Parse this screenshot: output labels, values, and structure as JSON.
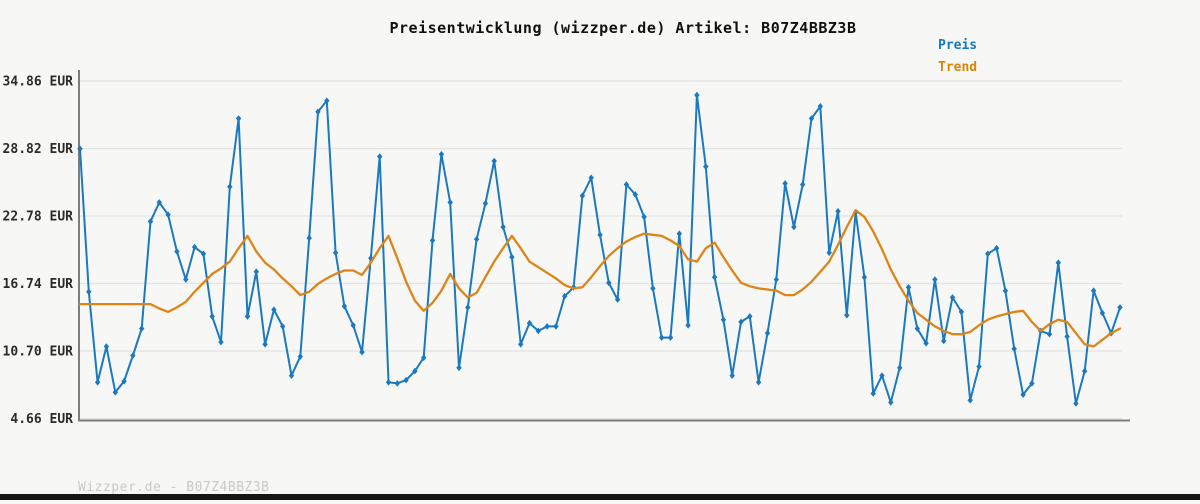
{
  "header": {
    "title": "Preisentwicklung (wizzper.de) Artikel: B07Z4BBZ3B"
  },
  "legend": {
    "items": [
      {
        "label": "Preis",
        "color": "#1878be"
      },
      {
        "label": "Trend",
        "color": "#dd8500"
      }
    ]
  },
  "footer": {
    "text": "Wizzper.de - B07Z4BBZ3B"
  },
  "colors": {
    "background": "#f7f7f6",
    "grid": "#e3e3e2",
    "axis": "#7d7d7d",
    "price_line": "#1b79c0",
    "trend_line": "#df8416",
    "bottom_bar": "#161616"
  },
  "chart_data": {
    "type": "line",
    "title": "Preisentwicklung (wizzper.de) Artikel: B07Z4BBZ3B",
    "currency": "EUR",
    "xlabel": "",
    "ylabel": "",
    "grid": "horizontal-only",
    "legend_position": "top-right",
    "x_tick_labels_visible": false,
    "y_axis": {
      "min": 4.44,
      "max": 35.84,
      "ticks": [
        {
          "value": 34.86,
          "label": "34.86 EUR"
        },
        {
          "value": 28.82,
          "label": "28.82 EUR"
        },
        {
          "value": 22.78,
          "label": "22.78 EUR"
        },
        {
          "value": 16.74,
          "label": "16.74 EUR"
        },
        {
          "value": 10.7,
          "label": "10.70 EUR"
        },
        {
          "value": 4.66,
          "label": "4.66 EUR"
        }
      ]
    },
    "series": [
      {
        "name": "Preis",
        "color": "#1b79c0",
        "marker": "diamond",
        "values": [
          28.8,
          16.0,
          7.9,
          11.1,
          7.0,
          8.0,
          10.3,
          12.7,
          22.3,
          24.0,
          22.9,
          19.6,
          17.1,
          20.0,
          19.4,
          13.8,
          11.5,
          25.4,
          31.5,
          13.8,
          17.8,
          11.3,
          14.4,
          12.9,
          8.5,
          10.2,
          20.8,
          32.1,
          33.1,
          19.5,
          14.7,
          13.0,
          10.6,
          19.0,
          28.1,
          7.9,
          7.8,
          8.1,
          8.9,
          10.1,
          20.6,
          28.3,
          24.0,
          9.2,
          14.6,
          20.7,
          23.9,
          27.7,
          21.8,
          19.1,
          11.3,
          13.2,
          12.5,
          12.9,
          12.9,
          15.6,
          16.4,
          24.6,
          26.2,
          21.1,
          16.8,
          15.3,
          25.6,
          24.7,
          22.7,
          16.3,
          11.9,
          11.9,
          21.2,
          13.0,
          33.6,
          27.2,
          17.3,
          13.5,
          8.5,
          13.3,
          13.8,
          7.9,
          12.3,
          17.1,
          25.7,
          21.8,
          25.6,
          31.5,
          32.6,
          19.5,
          23.2,
          13.9,
          23.1,
          17.3,
          6.9,
          8.5,
          6.1,
          9.2,
          16.4,
          12.7,
          11.4,
          17.1,
          11.6,
          15.5,
          14.2,
          6.3,
          9.3,
          19.4,
          19.9,
          16.1,
          10.9,
          6.8,
          7.8,
          12.5,
          12.2,
          18.6,
          12.0,
          6.0,
          8.9,
          16.1,
          14.1,
          12.3,
          14.6
        ]
      },
      {
        "name": "Trend",
        "color": "#df8416",
        "marker": "none",
        "values": [
          14.9,
          14.9,
          14.9,
          14.9,
          14.9,
          14.9,
          14.9,
          14.9,
          14.9,
          14.5,
          14.2,
          14.6,
          15.1,
          16.0,
          16.8,
          17.6,
          18.1,
          18.7,
          19.9,
          21.0,
          19.6,
          18.6,
          18.0,
          17.2,
          16.5,
          15.7,
          16.0,
          16.7,
          17.2,
          17.6,
          17.9,
          17.9,
          17.5,
          18.6,
          19.9,
          21.0,
          19.0,
          16.9,
          15.2,
          14.3,
          15.0,
          16.1,
          17.6,
          16.3,
          15.5,
          15.9,
          17.3,
          18.7,
          19.9,
          21.0,
          19.9,
          18.7,
          18.2,
          17.7,
          17.2,
          16.6,
          16.3,
          16.4,
          17.3,
          18.3,
          19.2,
          19.9,
          20.5,
          20.9,
          21.2,
          21.1,
          21.0,
          20.6,
          20.1,
          18.9,
          18.7,
          19.9,
          20.4,
          19.1,
          17.9,
          16.8,
          16.5,
          16.3,
          16.2,
          16.1,
          15.7,
          15.7,
          16.2,
          16.9,
          17.8,
          18.7,
          20.2,
          21.8,
          23.3,
          22.7,
          21.4,
          19.8,
          18.0,
          16.5,
          15.2,
          14.1,
          13.5,
          12.9,
          12.5,
          12.2,
          12.2,
          12.4,
          13.0,
          13.5,
          13.8,
          14.0,
          14.2,
          14.3,
          13.3,
          12.5,
          13.1,
          13.5,
          13.3,
          12.3,
          11.3,
          11.1,
          11.7,
          12.3,
          12.7
        ]
      }
    ]
  }
}
